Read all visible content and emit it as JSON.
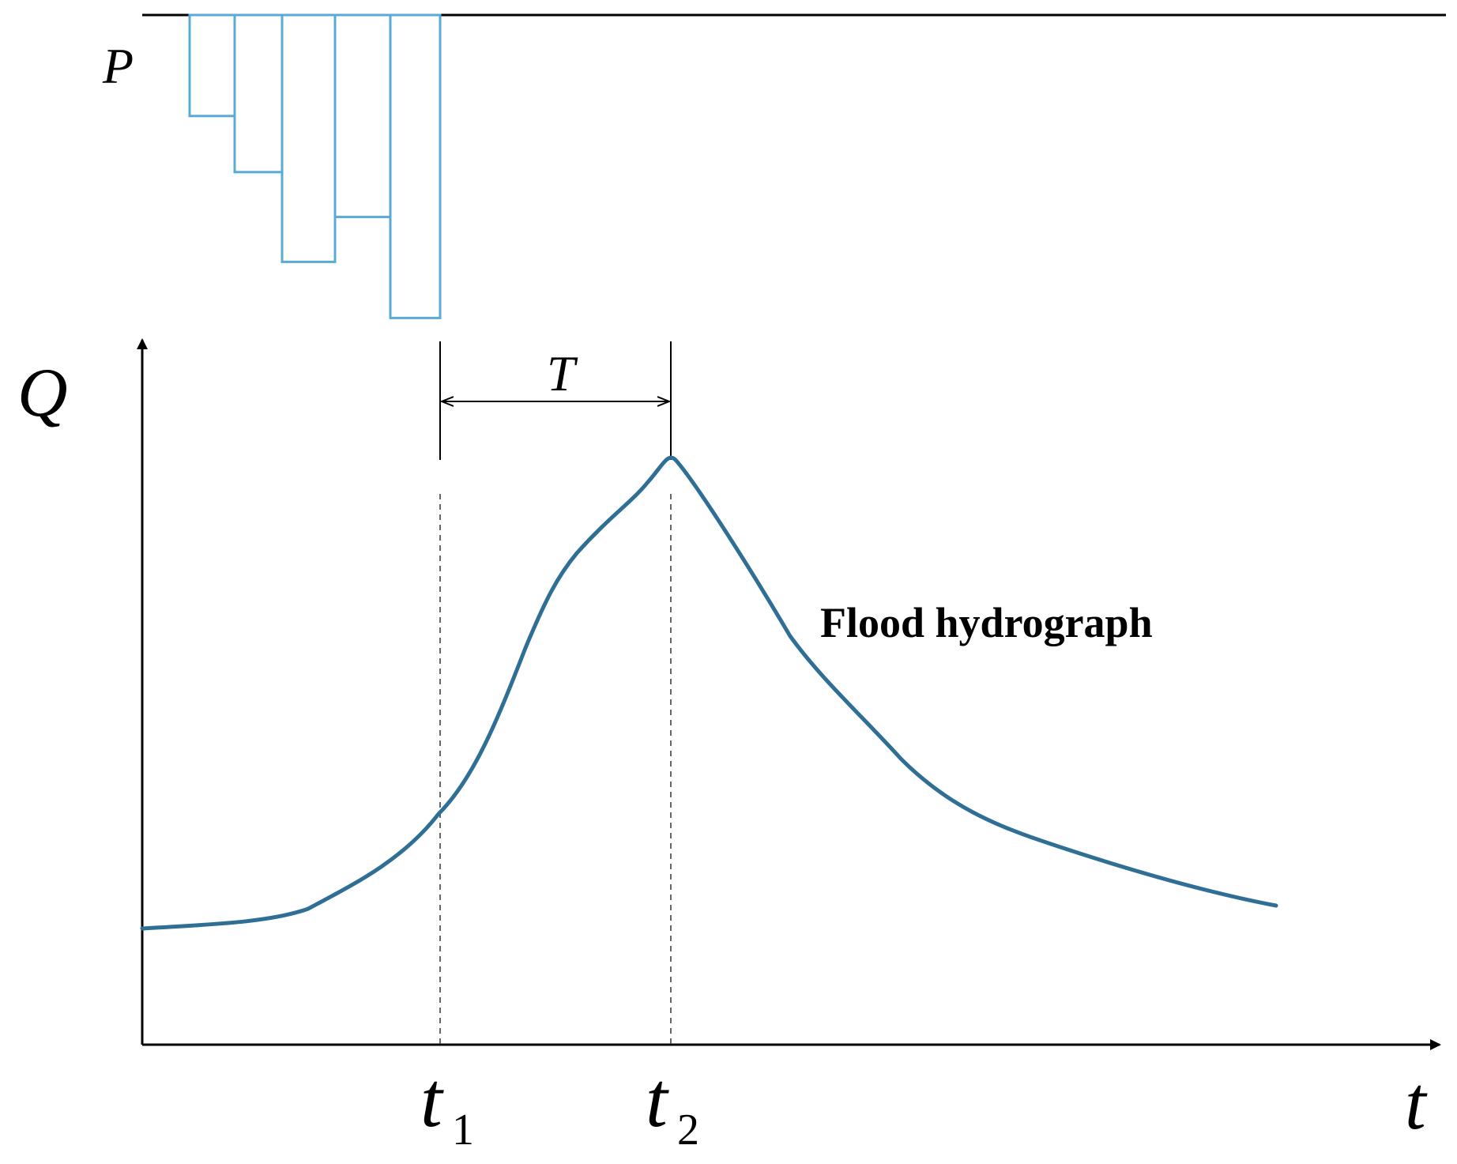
{
  "labels": {
    "precip": "P",
    "discharge": "Q",
    "time": "t",
    "lag": "T",
    "t1_main": "t",
    "t1_sub": "1",
    "t2_main": "t",
    "t2_sub": "2",
    "curve": "Flood hydrograph"
  },
  "colors": {
    "axis": "#000000",
    "precip_bars": "#5aa9d6",
    "hydrograph": "#2f6f96",
    "guides": "#333333"
  },
  "precipitation": {
    "bars": [
      {
        "index": 1,
        "depth": 1.8
      },
      {
        "index": 2,
        "depth": 2.8
      },
      {
        "index": 3,
        "depth": 4.4
      },
      {
        "index": 4,
        "depth": 3.6
      },
      {
        "index": 5,
        "depth": 5.4
      }
    ]
  }
}
